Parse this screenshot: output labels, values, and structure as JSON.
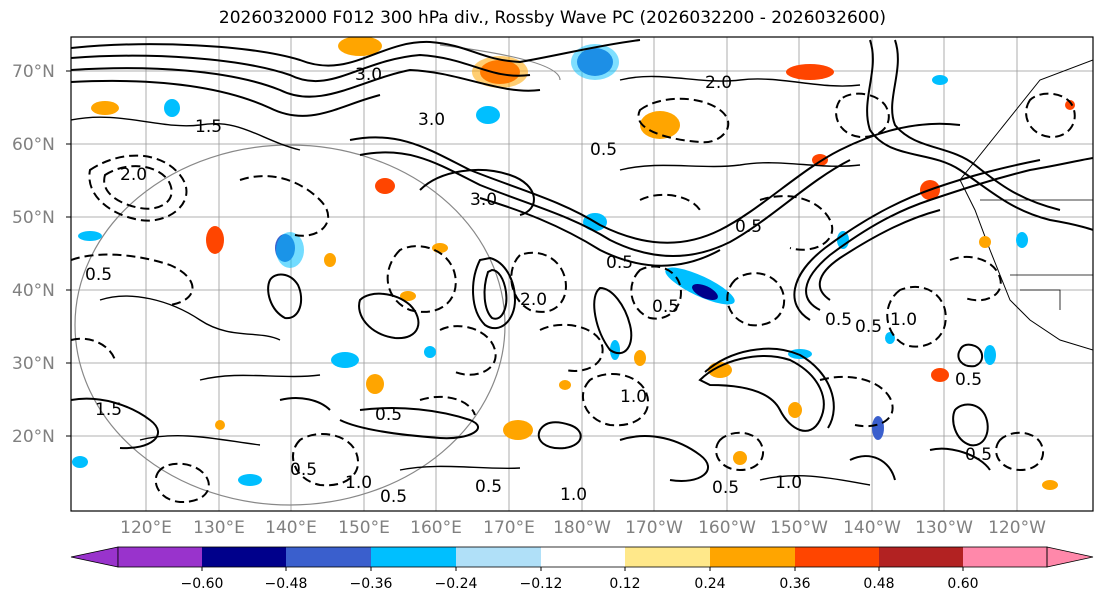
{
  "title": "2026032000 F012 300 hPa div., Rossby Wave PC (2026032200 - 2026032600)",
  "lat_labels": [
    "70°N",
    "60°N",
    "50°N",
    "40°N",
    "30°N",
    "20°N"
  ],
  "lon_labels": [
    "120°E",
    "130°E",
    "140°E",
    "150°E",
    "160°E",
    "170°E",
    "180°W",
    "170°W",
    "160°W",
    "150°W",
    "140°W",
    "130°W",
    "120°W"
  ],
  "colorbar": {
    "ticks": [
      "−0.60",
      "−0.48",
      "−0.36",
      "−0.24",
      "−0.12",
      "0.12",
      "0.24",
      "0.36",
      "0.48",
      "0.60"
    ],
    "colors": [
      "#9933cc",
      "#00008b",
      "#3a5fcd",
      "#00bfff",
      "#b0e0f8",
      "#ffffff",
      "#ffe88a",
      "#ffa500",
      "#ff4500",
      "#b22222",
      "#ff88aa"
    ]
  },
  "contour_labels": [
    "3.0",
    "3.0",
    "2.0",
    "1.5",
    "0.5",
    "0.5",
    "0.5",
    "0.5",
    "0.5",
    "0.5",
    "0.5",
    "1.0",
    "1.0",
    "1.0",
    "1.0",
    "2.0",
    "0.5",
    "3.0",
    "0.5",
    "0.5",
    "0.5",
    "1.0",
    "1.5",
    "0.5",
    "0.5",
    "2.0",
    "0.5"
  ]
}
